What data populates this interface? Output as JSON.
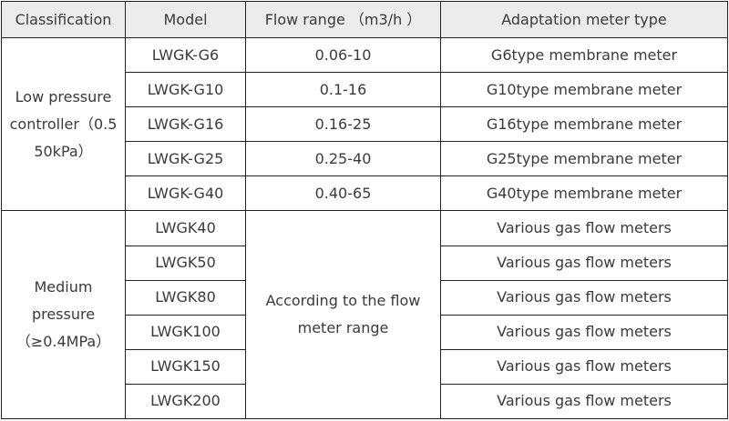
{
  "table": {
    "headers": [
      "Classification",
      "Model",
      "Flow range （m3/h ）",
      "Adaptation meter type"
    ],
    "low_pressure": {
      "classification": "Low pressure controller（0.5 50kPa）",
      "rows": [
        {
          "model": "LWGK-G6",
          "flow": "0.06-10",
          "meter": "G6type membrane meter"
        },
        {
          "model": "LWGK-G10",
          "flow": "0.1-16",
          "meter": "G10type membrane meter"
        },
        {
          "model": "LWGK-G16",
          "flow": "0.16-25",
          "meter": "G16type membrane meter"
        },
        {
          "model": "LWGK-G25",
          "flow": "0.25-40",
          "meter": "G25type membrane meter"
        },
        {
          "model": "LWGK-G40",
          "flow": "0.40-65",
          "meter": "G40type membrane meter"
        }
      ]
    },
    "medium_pressure": {
      "classification": "Medium pressure（≥0.4MPa）",
      "flow": "According to the flow meter range",
      "rows": [
        {
          "model": "LWGK40",
          "meter": "Various gas flow meters"
        },
        {
          "model": "LWGK50",
          "meter": "Various gas flow meters"
        },
        {
          "model": "LWGK80",
          "meter": "Various gas flow meters"
        },
        {
          "model": "LWGK100",
          "meter": "Various gas flow meters"
        },
        {
          "model": "LWGK150",
          "meter": "Various gas flow meters"
        },
        {
          "model": "LWGK200",
          "meter": "Various gas flow meters"
        }
      ]
    }
  }
}
